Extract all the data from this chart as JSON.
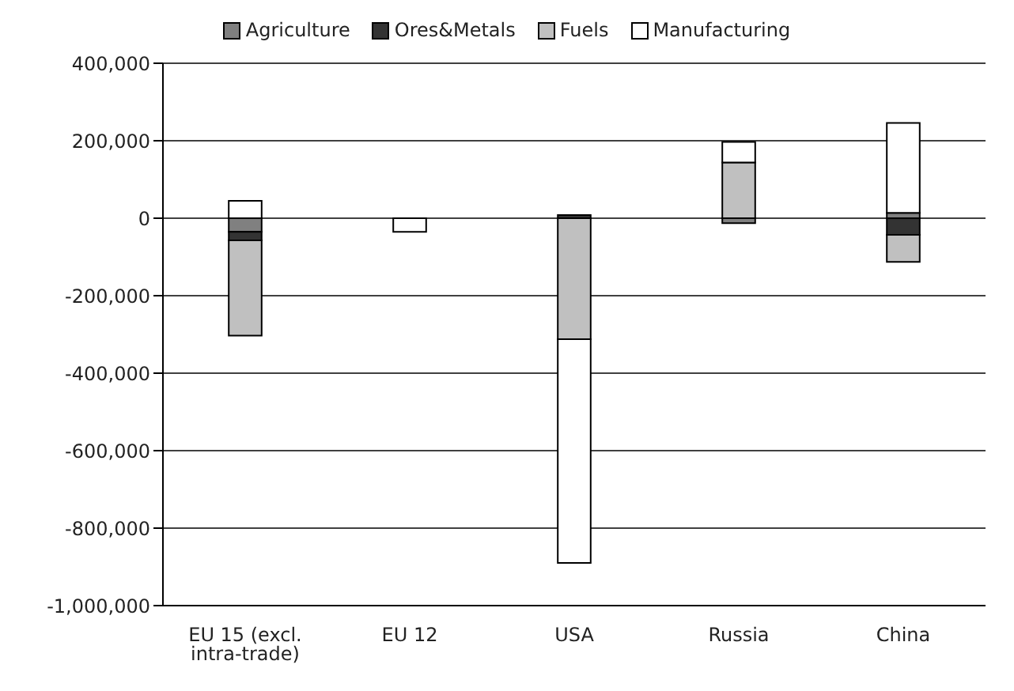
{
  "chart_data": {
    "type": "bar",
    "stacked": true,
    "categories": [
      "EU 15 (excl. intra-trade)",
      "EU 12",
      "USA",
      "Russia",
      "China"
    ],
    "series": [
      {
        "name": "Agriculture",
        "color": "#808080",
        "values": [
          -35000,
          null,
          null,
          -13000,
          14000
        ]
      },
      {
        "name": "Ores&Metals",
        "color": "#333333",
        "values": [
          -22000,
          0,
          8000,
          0,
          -43000
        ]
      },
      {
        "name": "Fuels",
        "color": "#c0c0c0",
        "values": [
          -246000,
          0,
          -312000,
          144000,
          -70000
        ]
      },
      {
        "name": "Manufacturing",
        "color": "#ffffff",
        "values": [
          45000,
          -35000,
          -578000,
          53000,
          232000
        ]
      }
    ],
    "ylim": [
      -1000000,
      400000
    ],
    "yticks": [
      {
        "value": -1000000,
        "label": "-1,000,000"
      },
      {
        "value": -800000,
        "label": "-800,000"
      },
      {
        "value": -600000,
        "label": "-600,000"
      },
      {
        "value": -400000,
        "label": "-400,000"
      },
      {
        "value": -200000,
        "label": "-200,000"
      },
      0,
      {
        "value": 200000,
        "label": "200,000"
      },
      {
        "value": 400000,
        "label": "400,000"
      }
    ],
    "grid": "y",
    "legend": "top"
  }
}
